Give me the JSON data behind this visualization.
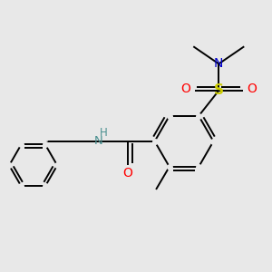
{
  "bg_color": "#e8e8e8",
  "atom_colors": {
    "C": "#000000",
    "N_nh": "#4a9090",
    "N_nme": "#0000cc",
    "O": "#ff0000",
    "S": "#cccc00"
  },
  "bond_color": "#000000",
  "bond_lw": 1.4,
  "fig_size": [
    3.0,
    3.0
  ],
  "dpi": 100,
  "xlim": [
    0,
    10
  ],
  "ylim": [
    0,
    10
  ]
}
